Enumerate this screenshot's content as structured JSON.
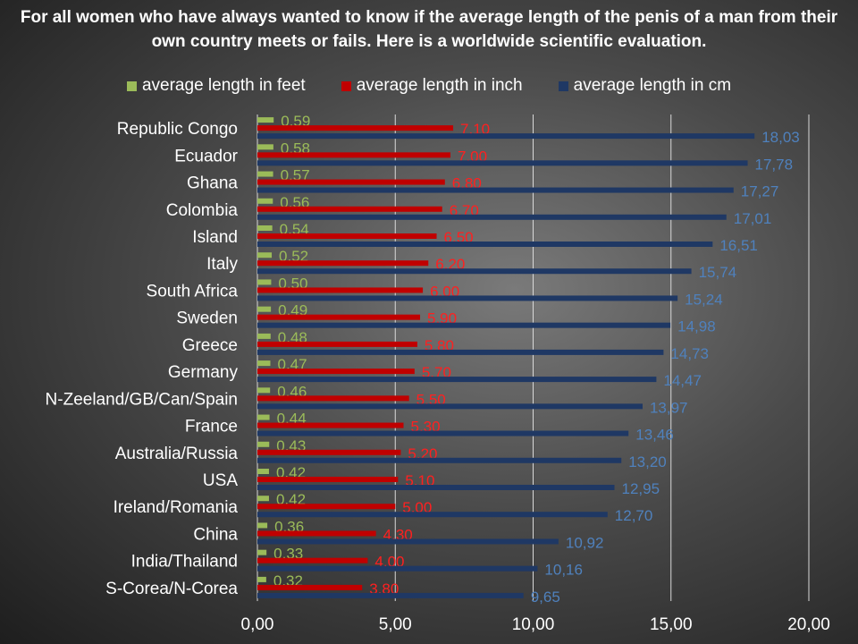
{
  "chart_data": {
    "type": "bar",
    "orientation": "horizontal",
    "title": "For all women who have always wanted to know if the average length of the penis of a man from their own country meets or fails. Here is a worldwide scientific evaluation.",
    "categories": [
      "Republic Congo",
      "Ecuador",
      "Ghana",
      "Colombia",
      "Island",
      "Italy",
      "South Africa",
      "Sweden",
      "Greece",
      "Germany",
      "N-Zeeland/GB/Can/Spain",
      "France",
      "Australia/Russia",
      "USA",
      "Ireland/Romania",
      "China",
      "India/Thailand",
      "S-Corea/N-Corea"
    ],
    "series": [
      {
        "name": "average length in feet",
        "color": "#9bbb59",
        "label_color": "#9bbb59",
        "values": [
          0.59,
          0.58,
          0.57,
          0.56,
          0.54,
          0.52,
          0.5,
          0.49,
          0.48,
          0.47,
          0.46,
          0.44,
          0.43,
          0.42,
          0.42,
          0.36,
          0.33,
          0.32
        ],
        "labels": [
          "0,59",
          "0,58",
          "0,57",
          "0,56",
          "0,54",
          "0,52",
          "0,50",
          "0,49",
          "0,48",
          "0,47",
          "0,46",
          "0,44",
          "0,43",
          "0,42",
          "0,42",
          "0,36",
          "0,33",
          "0,32"
        ]
      },
      {
        "name": "average length in inch",
        "color": "#c00000",
        "label_color": "#ff2020",
        "values": [
          7.1,
          7.0,
          6.8,
          6.7,
          6.5,
          6.2,
          6.0,
          5.9,
          5.8,
          5.7,
          5.5,
          5.3,
          5.2,
          5.1,
          5.0,
          4.3,
          4.0,
          3.8
        ],
        "labels": [
          "7,10",
          "7,00",
          "6,80",
          "6,70",
          "6,50",
          "6,20",
          "6,00",
          "5,90",
          "5,80",
          "5,70",
          "5,50",
          "5,30",
          "5,20",
          "5,10",
          "5,00",
          "4,30",
          "4,00",
          "3,80"
        ]
      },
      {
        "name": "average length in cm",
        "color": "#1f3864",
        "label_color": "#4f81bd",
        "values": [
          18.03,
          17.78,
          17.27,
          17.01,
          16.51,
          15.74,
          15.24,
          14.98,
          14.73,
          14.47,
          13.97,
          13.46,
          13.2,
          12.95,
          12.7,
          10.92,
          10.16,
          9.65
        ],
        "labels": [
          "18,03",
          "17,78",
          "17,27",
          "17,01",
          "16,51",
          "15,74",
          "15,24",
          "14,98",
          "14,73",
          "14,47",
          "13,97",
          "13,46",
          "13,20",
          "12,95",
          "12,70",
          "10,92",
          "10,16",
          "9,65"
        ]
      }
    ],
    "xlim": [
      0,
      20
    ],
    "xticks": [
      0,
      5,
      10,
      15,
      20
    ],
    "xtick_labels": [
      "0,00",
      "5,00",
      "10,00",
      "15,00",
      "20,00"
    ],
    "grid": "vertical",
    "legend_position": "top"
  }
}
